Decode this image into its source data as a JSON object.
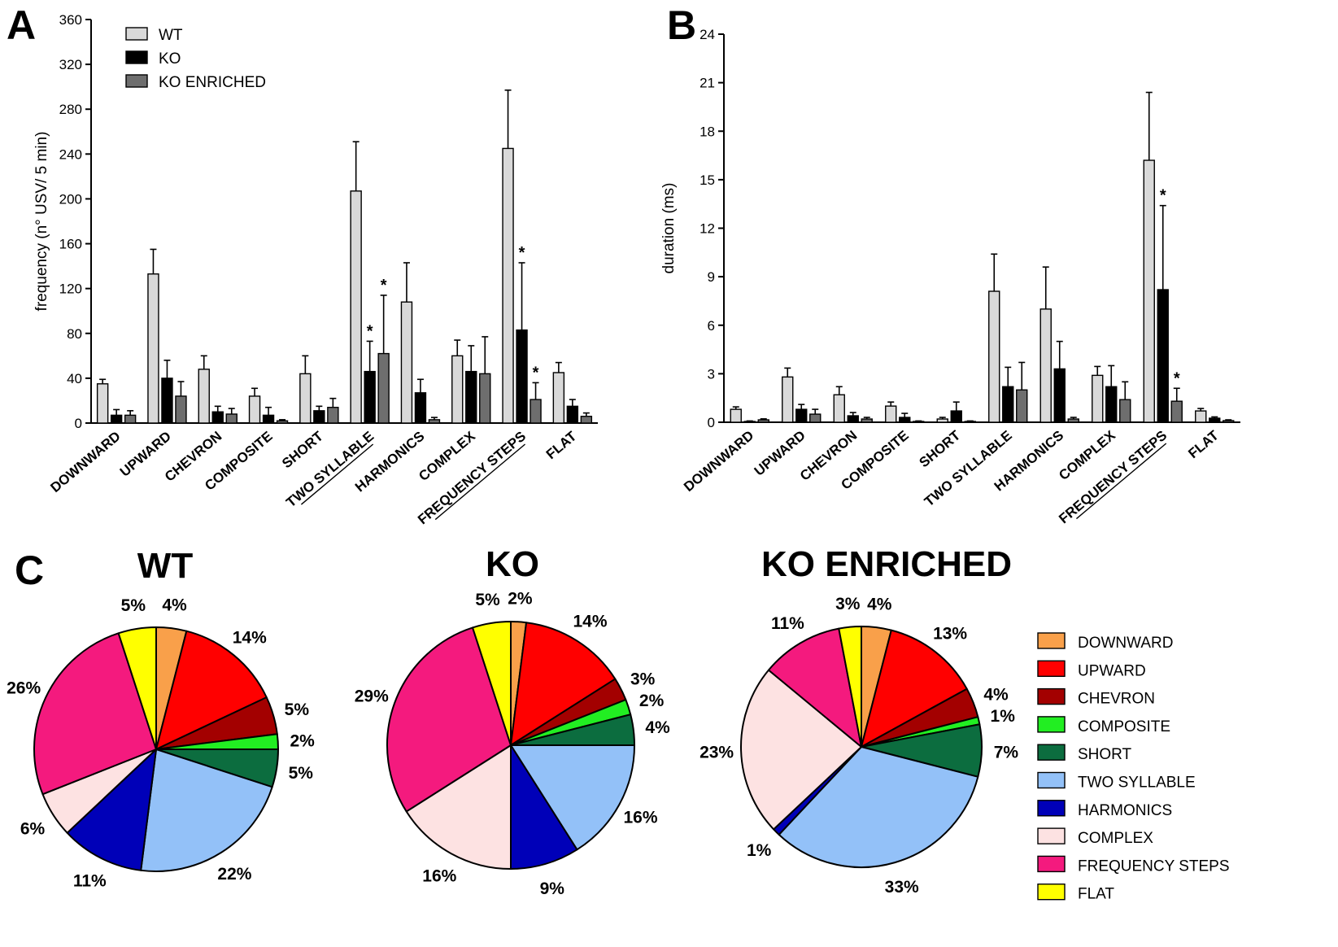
{
  "panels": {
    "a": "A",
    "b": "B",
    "c": "C"
  },
  "colors": {
    "wt": "#d9d9d9",
    "ko": "#000000",
    "ko_enriched": "#6e6e6e",
    "DOWNWARD": "#f9a04a",
    "UPWARD": "#ff0000",
    "CHEVRON": "#a30000",
    "COMPOSITE": "#22ee22",
    "SHORT": "#0c6d3f",
    "TWO SYLLABLE": "#93c1f8",
    "HARMONICS": "#0000b8",
    "COMPLEX": "#fde2e2",
    "FREQUENCY STEPS": "#f41a7e",
    "FLAT": "#ffff00"
  },
  "chart_data": [
    {
      "id": "A",
      "type": "bar",
      "ylabel": "frequency (n° USV/ 5 min)",
      "ylim": [
        0,
        360
      ],
      "yticks": [
        0,
        40,
        80,
        120,
        160,
        200,
        240,
        280,
        320,
        360
      ],
      "categories": [
        "DOWNWARD",
        "UPWARD",
        "CHEVRON",
        "COMPOSITE",
        "SHORT",
        "TWO SYLLABLE",
        "HARMONICS",
        "COMPLEX",
        "FREQUENCY STEPS",
        "FLAT"
      ],
      "underlined": [
        "TWO SYLLABLE",
        "FREQUENCY STEPS"
      ],
      "series": [
        {
          "name": "WT",
          "values": [
            35,
            133,
            48,
            24,
            44,
            207,
            108,
            60,
            245,
            45
          ],
          "errors": [
            4,
            22,
            12,
            7,
            16,
            44,
            35,
            14,
            52,
            9
          ]
        },
        {
          "name": "KO",
          "values": [
            7,
            40,
            10,
            7,
            11,
            46,
            27,
            46,
            83,
            15
          ],
          "errors": [
            5,
            16,
            5,
            7,
            4,
            27,
            12,
            23,
            60,
            6
          ]
        },
        {
          "name": "KO ENRICHED",
          "values": [
            7,
            24,
            8,
            2,
            14,
            62,
            3,
            44,
            21,
            6
          ],
          "errors": [
            4,
            13,
            5,
            1,
            8,
            52,
            2,
            33,
            15,
            3
          ]
        }
      ],
      "significance": [
        {
          "category": "TWO SYLLABLE",
          "series": "KO",
          "label": "*"
        },
        {
          "category": "TWO SYLLABLE",
          "series": "KO ENRICHED",
          "label": "*"
        },
        {
          "category": "FREQUENCY STEPS",
          "series": "KO",
          "label": "*"
        },
        {
          "category": "FREQUENCY STEPS",
          "series": "KO ENRICHED",
          "label": "*"
        }
      ],
      "legend": [
        "WT",
        "KO",
        "KO ENRICHED"
      ]
    },
    {
      "id": "B",
      "type": "bar",
      "ylabel": "duration (ms)",
      "ylim": [
        0,
        24
      ],
      "yticks": [
        0,
        3,
        6,
        9,
        12,
        15,
        18,
        21,
        24
      ],
      "categories": [
        "DOWNWARD",
        "UPWARD",
        "CHEVRON",
        "COMPOSITE",
        "SHORT",
        "TWO SYLLABLE",
        "HARMONICS",
        "COMPLEX",
        "FREQUENCY STEPS",
        "FLAT"
      ],
      "underlined": [
        "FREQUENCY STEPS"
      ],
      "series": [
        {
          "name": "WT",
          "values": [
            0.8,
            2.8,
            1.7,
            1.0,
            0.2,
            8.1,
            7.0,
            2.9,
            16.2,
            0.7
          ],
          "errors": [
            0.15,
            0.55,
            0.5,
            0.25,
            0.1,
            2.3,
            2.6,
            0.55,
            4.2,
            0.15
          ]
        },
        {
          "name": "KO",
          "values": [
            0.05,
            0.8,
            0.4,
            0.3,
            0.7,
            2.2,
            3.3,
            2.2,
            8.2,
            0.25
          ],
          "errors": [
            0.03,
            0.3,
            0.2,
            0.25,
            0.55,
            1.2,
            1.7,
            1.3,
            5.2,
            0.08
          ]
        },
        {
          "name": "KO ENRICHED",
          "values": [
            0.15,
            0.5,
            0.2,
            0.05,
            0.05,
            2.0,
            0.2,
            1.4,
            1.3,
            0.1
          ],
          "errors": [
            0.06,
            0.3,
            0.1,
            0.03,
            0.03,
            1.7,
            0.1,
            1.1,
            0.8,
            0.05
          ]
        }
      ],
      "significance": [
        {
          "category": "FREQUENCY STEPS",
          "series": "KO",
          "label": "*"
        },
        {
          "category": "FREQUENCY STEPS",
          "series": "KO ENRICHED",
          "label": "*"
        }
      ]
    },
    {
      "id": "C-WT",
      "type": "pie",
      "title": "WT",
      "slices": [
        {
          "label": "DOWNWARD",
          "value": 4,
          "text": "4%"
        },
        {
          "label": "UPWARD",
          "value": 14,
          "text": "14%"
        },
        {
          "label": "CHEVRON",
          "value": 5,
          "text": "5%"
        },
        {
          "label": "COMPOSITE",
          "value": 2,
          "text": "2%"
        },
        {
          "label": "SHORT",
          "value": 5,
          "text": "5%"
        },
        {
          "label": "TWO SYLLABLE",
          "value": 22,
          "text": "22%"
        },
        {
          "label": "HARMONICS",
          "value": 11,
          "text": "11%"
        },
        {
          "label": "COMPLEX",
          "value": 6,
          "text": "6%"
        },
        {
          "label": "FREQUENCY STEPS",
          "value": 26,
          "text": "26%"
        },
        {
          "label": "FLAT",
          "value": 5,
          "text": "5%"
        }
      ]
    },
    {
      "id": "C-KO",
      "type": "pie",
      "title": "KO",
      "slices": [
        {
          "label": "DOWNWARD",
          "value": 2,
          "text": "2%"
        },
        {
          "label": "UPWARD",
          "value": 14,
          "text": "14%"
        },
        {
          "label": "CHEVRON",
          "value": 3,
          "text": "3%"
        },
        {
          "label": "COMPOSITE",
          "value": 2,
          "text": "2%"
        },
        {
          "label": "SHORT",
          "value": 4,
          "text": "4%"
        },
        {
          "label": "TWO SYLLABLE",
          "value": 16,
          "text": "16%"
        },
        {
          "label": "HARMONICS",
          "value": 9,
          "text": "9%"
        },
        {
          "label": "COMPLEX",
          "value": 16,
          "text": "16%"
        },
        {
          "label": "FREQUENCY STEPS",
          "value": 29,
          "text": "29%"
        },
        {
          "label": "FLAT",
          "value": 5,
          "text": "5%"
        }
      ]
    },
    {
      "id": "C-KO-ENRICHED",
      "type": "pie",
      "title": "KO ENRICHED",
      "slices": [
        {
          "label": "DOWNWARD",
          "value": 4,
          "text": "4%"
        },
        {
          "label": "UPWARD",
          "value": 13,
          "text": "13%"
        },
        {
          "label": "CHEVRON",
          "value": 4,
          "text": "4%"
        },
        {
          "label": "COMPOSITE",
          "value": 1,
          "text": "1%"
        },
        {
          "label": "SHORT",
          "value": 7,
          "text": "7%"
        },
        {
          "label": "TWO SYLLABLE",
          "value": 33,
          "text": "33%"
        },
        {
          "label": "HARMONICS",
          "value": 1,
          "text": "1%"
        },
        {
          "label": "COMPLEX",
          "value": 23,
          "text": "23%"
        },
        {
          "label": "FREQUENCY STEPS",
          "value": 11,
          "text": "11%"
        },
        {
          "label": "FLAT",
          "value": 3,
          "text": "3%"
        }
      ]
    }
  ],
  "pie_legend": [
    "DOWNWARD",
    "UPWARD",
    "CHEVRON",
    "COMPOSITE",
    "SHORT",
    "TWO SYLLABLE",
    "HARMONICS",
    "COMPLEX",
    "FREQUENCY STEPS",
    "FLAT"
  ]
}
